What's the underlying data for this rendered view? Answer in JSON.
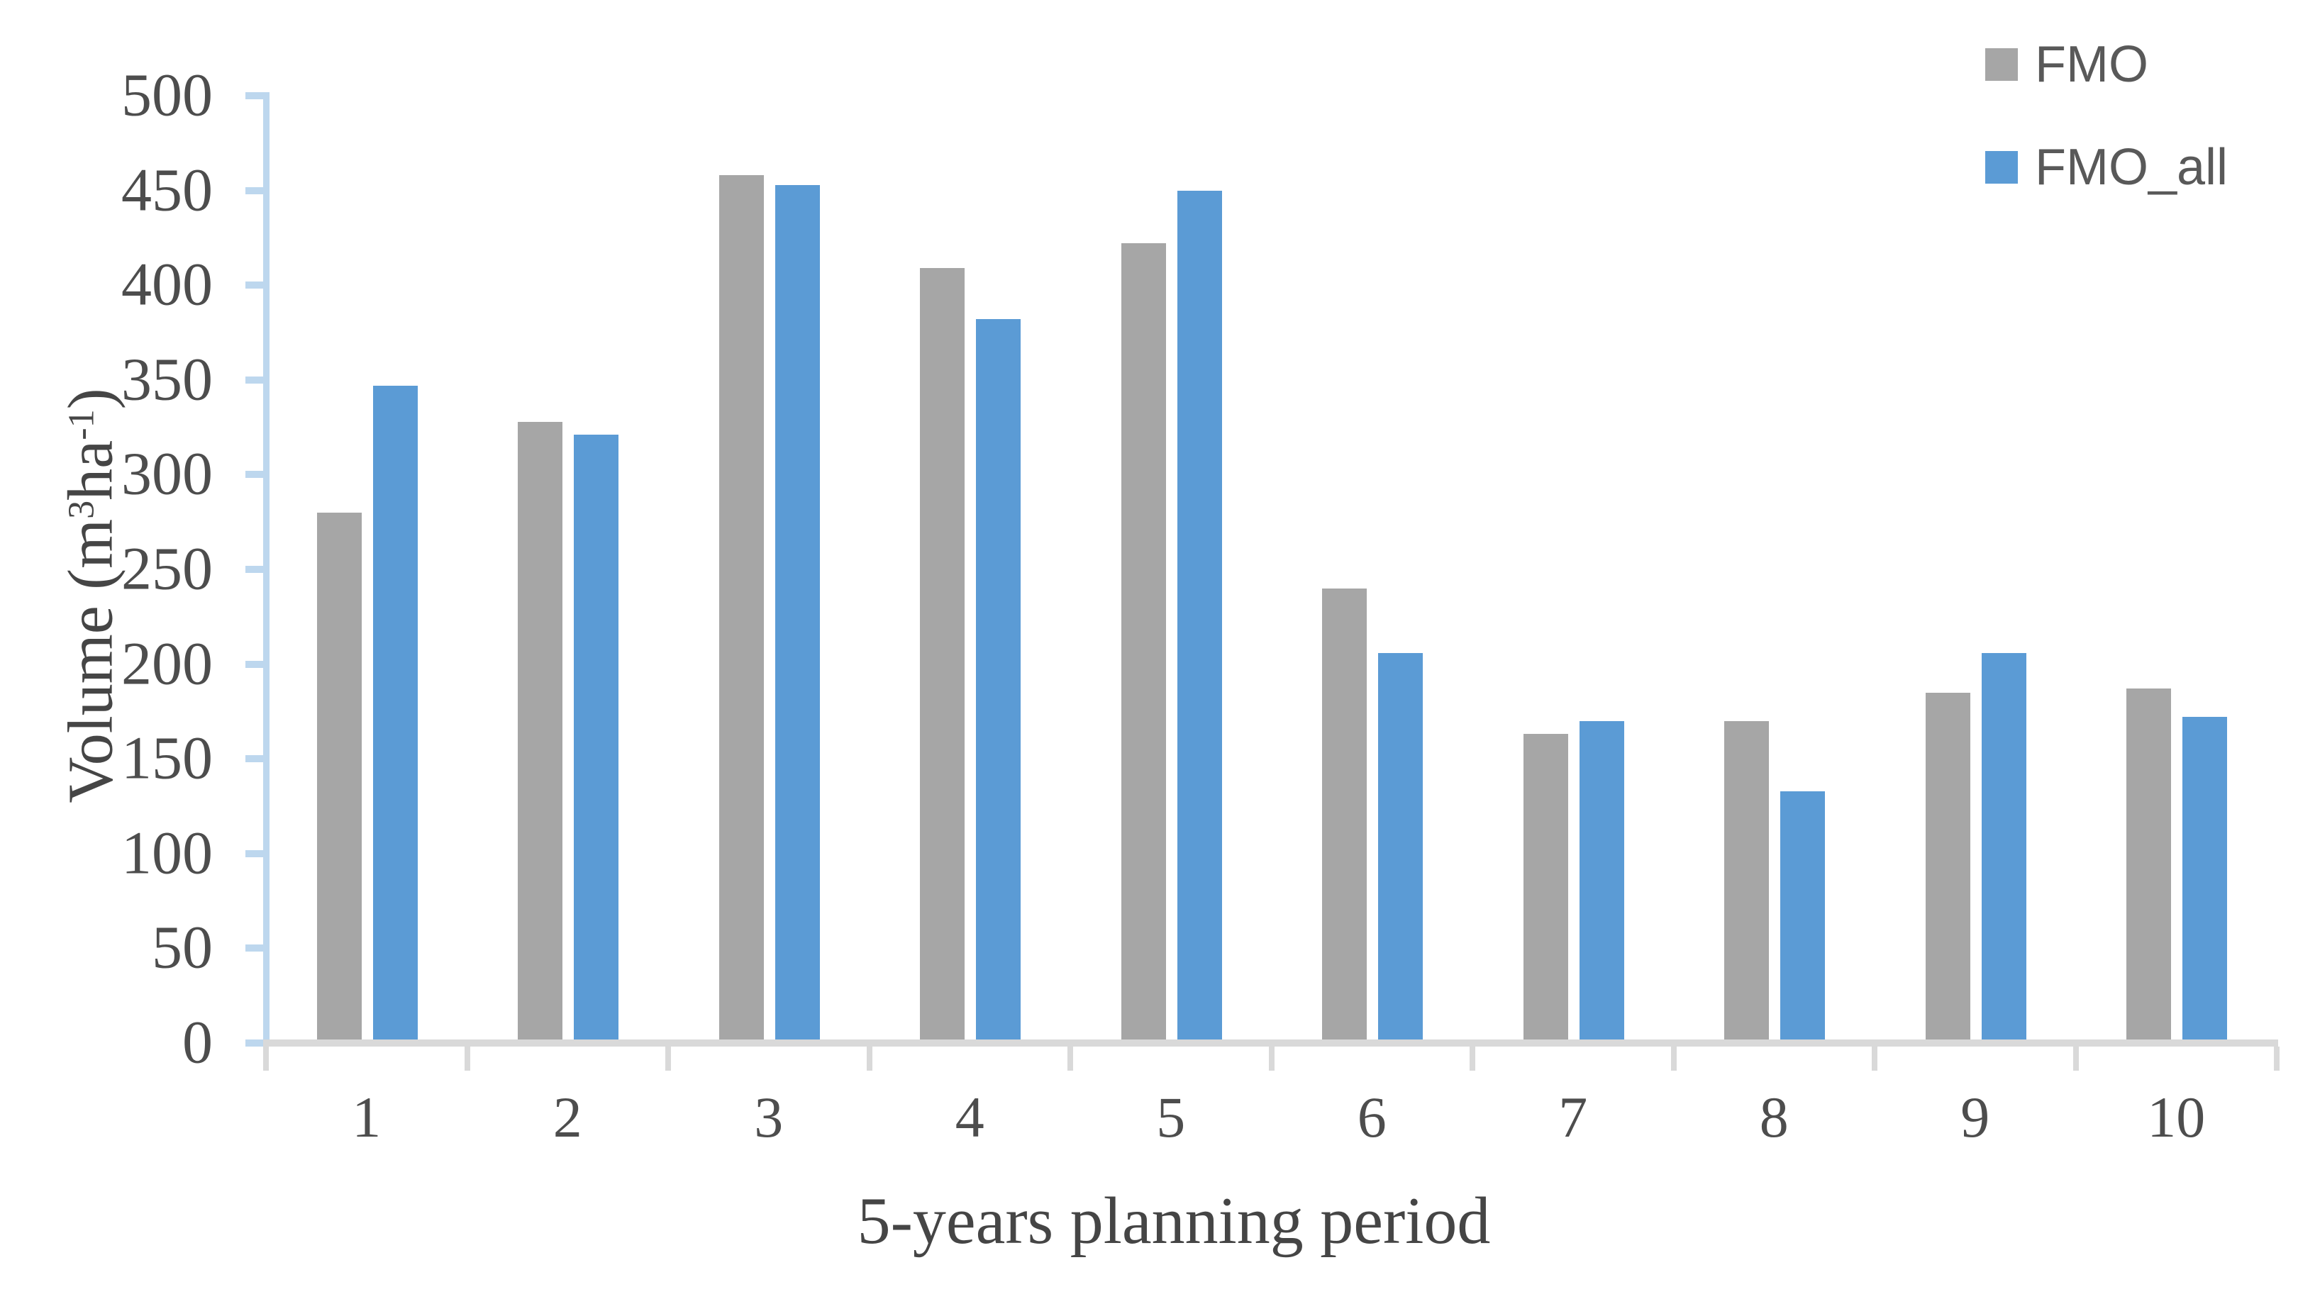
{
  "chart_data": {
    "type": "bar",
    "categories": [
      "1",
      "2",
      "3",
      "4",
      "5",
      "6",
      "7",
      "8",
      "9",
      "10"
    ],
    "series": [
      {
        "name": "FMO",
        "color": "#a6a6a6",
        "values": [
          280,
          328,
          458,
          409,
          422,
          240,
          163,
          170,
          185,
          187
        ]
      },
      {
        "name": "FMO_all",
        "color": "#5b9bd5",
        "values": [
          347,
          321,
          453,
          382,
          450,
          206,
          170,
          133,
          206,
          172
        ]
      }
    ],
    "title": "",
    "xlabel": "5-years planning period",
    "ylabel": "Volume (m3ha-1)",
    "ylabel_parts": {
      "prefix": "Volume (m",
      "sup1": "3",
      "mid": "ha",
      "sup2": "-1",
      "suffix": ")"
    },
    "ylim": [
      0,
      500
    ],
    "ytick_step": 50,
    "ytick_labels": [
      "0",
      "50",
      "100",
      "150",
      "200",
      "250",
      "300",
      "350",
      "400",
      "450",
      "500"
    ],
    "grid": false,
    "legend_position": "top-right"
  },
  "colors": {
    "axis_line": "#bdd7ee",
    "axis_tick": "#bdd7ee",
    "baseline": "#d9d9d9",
    "baseline_tick": "#d9d9d9",
    "label_text": "#4d4d4d",
    "title_text": "#454545",
    "legend_text": "#595959"
  }
}
